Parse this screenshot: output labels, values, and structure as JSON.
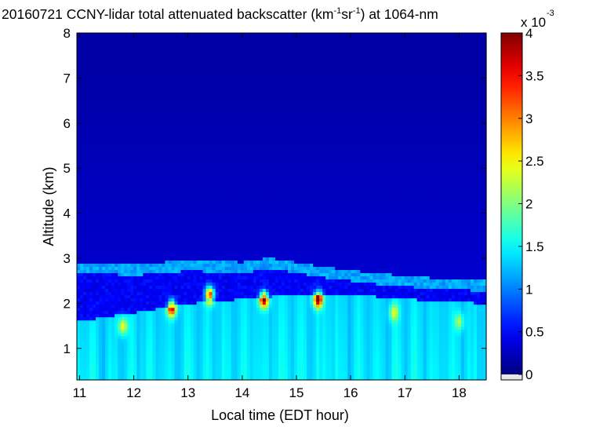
{
  "chart_data": {
    "type": "heatmap",
    "title": {
      "pre": "20160721 CCNY-lidar total attenuated backscatter (km",
      "sup1": "-1",
      "mid": "sr",
      "sup2": "-1",
      "post": ") at 1064-nm"
    },
    "xlabel": "Local time (EDT hour)",
    "ylabel": "Altitude (km)",
    "xlim": [
      10.95,
      18.5
    ],
    "ylim": [
      0.3,
      8.0
    ],
    "x_ticks": [
      11,
      12,
      13,
      14,
      15,
      16,
      17,
      18
    ],
    "y_ticks": [
      1,
      2,
      3,
      4,
      5,
      6,
      7,
      8
    ],
    "colorbar": {
      "range": [
        0,
        4
      ],
      "ticks": [
        "0",
        "0.5",
        "1",
        "1.5",
        "2",
        "2.5",
        "3",
        "3.5",
        "4"
      ],
      "multiplier_base": "x 10",
      "multiplier_exp": "-3",
      "colormap": "jet"
    },
    "layers": {
      "free_troposphere_value": 0.15,
      "residual_layer_top_km": [
        [
          11.0,
          2.8
        ],
        [
          12.0,
          2.75
        ],
        [
          13.0,
          2.85
        ],
        [
          14.0,
          2.8
        ],
        [
          14.5,
          2.9
        ],
        [
          15.5,
          2.7
        ],
        [
          16.5,
          2.55
        ],
        [
          17.5,
          2.45
        ],
        [
          18.5,
          2.4
        ]
      ],
      "residual_layer_value": 1.1,
      "boundary_layer_top_km": [
        [
          11.0,
          1.6
        ],
        [
          12.0,
          1.8
        ],
        [
          13.0,
          2.0
        ],
        [
          14.0,
          2.1
        ],
        [
          15.0,
          2.2
        ],
        [
          16.0,
          2.2
        ],
        [
          17.0,
          2.1
        ],
        [
          18.5,
          2.0
        ]
      ],
      "boundary_layer_value": 1.2,
      "aerosol_peaks": [
        {
          "time": 11.8,
          "alt": 1.5,
          "value": 2.4
        },
        {
          "time": 12.7,
          "alt": 1.9,
          "value": 3.6
        },
        {
          "time": 13.4,
          "alt": 2.2,
          "value": 4.0
        },
        {
          "time": 14.4,
          "alt": 2.1,
          "value": 3.9
        },
        {
          "time": 15.4,
          "alt": 2.1,
          "value": 4.0
        },
        {
          "time": 16.8,
          "alt": 1.8,
          "value": 2.2
        },
        {
          "time": 18.0,
          "alt": 1.6,
          "value": 2.0
        }
      ]
    }
  }
}
